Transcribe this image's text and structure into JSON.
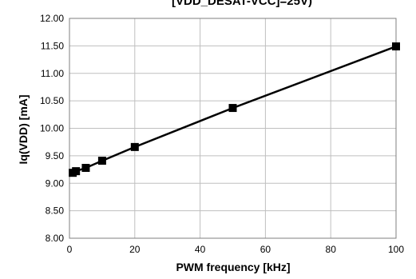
{
  "chart_data": {
    "type": "line",
    "title": "[VDD_DESAT-VCC]=25V)",
    "xlabel": "PWM frequency [kHz]",
    "ylabel": "Iq(VDD) [mA]",
    "xlim": [
      0,
      100
    ],
    "ylim": [
      8.0,
      12.0
    ],
    "xticks": [
      0,
      20,
      40,
      60,
      80,
      100
    ],
    "yticks": [
      "8.00",
      "8.50",
      "9.00",
      "9.50",
      "10.00",
      "10.50",
      "11.00",
      "11.50",
      "12.00"
    ],
    "grid": true,
    "legend": "none",
    "series": [
      {
        "x": [
          1,
          2,
          5,
          10,
          20,
          50,
          100
        ],
        "y": [
          9.19,
          9.22,
          9.28,
          9.41,
          9.66,
          10.37,
          11.49
        ],
        "line_color": "#000000",
        "marker": "square"
      }
    ]
  }
}
